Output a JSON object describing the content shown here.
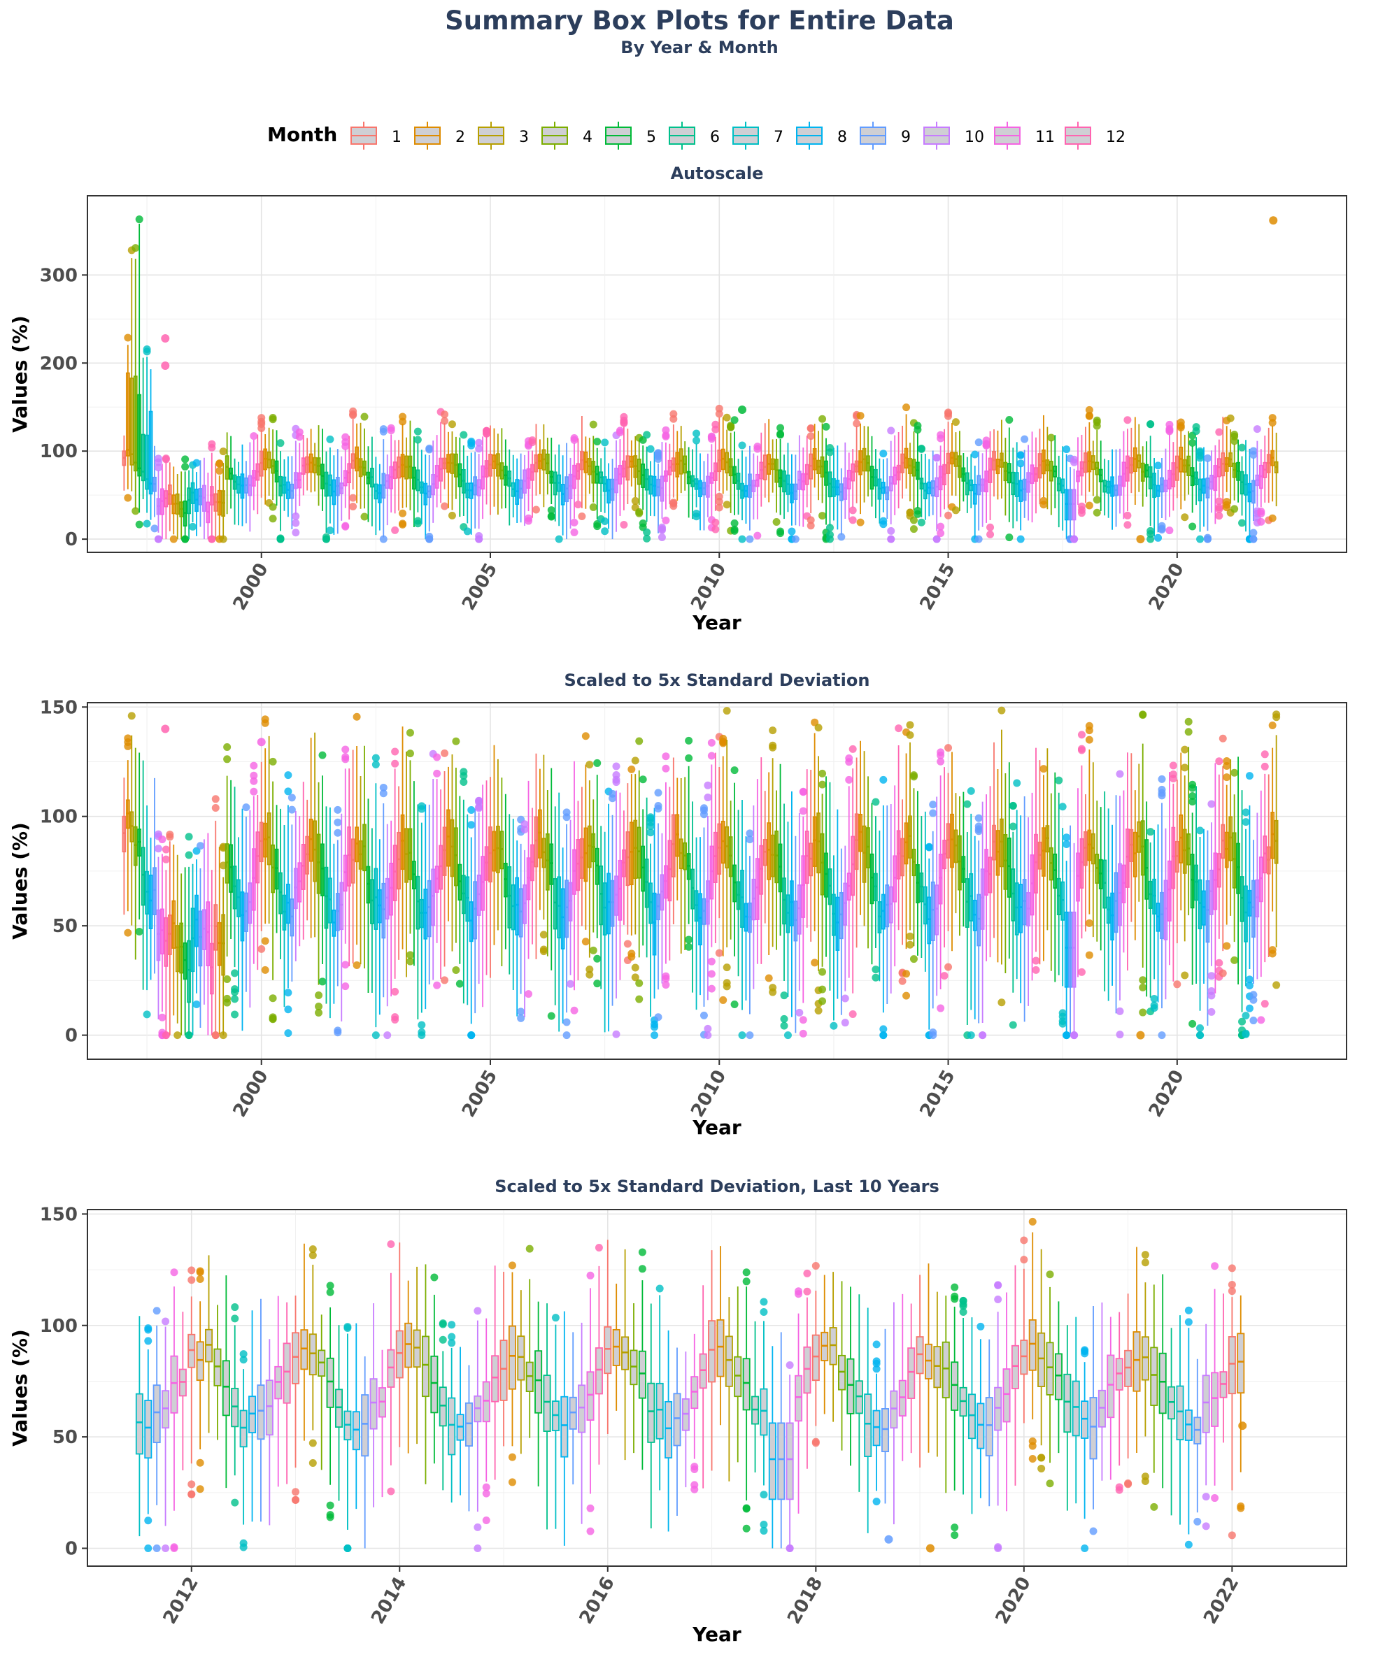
{
  "title": "Summary Box Plots for Entire Data",
  "subtitle": "By Year & Month",
  "legend": {
    "title": "Month",
    "placement": "top",
    "items": [
      {
        "label": "1",
        "color": "#F8766D"
      },
      {
        "label": "2",
        "color": "#DE8C00"
      },
      {
        "label": "3",
        "color": "#B79F00"
      },
      {
        "label": "4",
        "color": "#7CAE00"
      },
      {
        "label": "5",
        "color": "#00BA38"
      },
      {
        "label": "6",
        "color": "#00C08B"
      },
      {
        "label": "7",
        "color": "#00BFC4"
      },
      {
        "label": "8",
        "color": "#00B4F0"
      },
      {
        "label": "9",
        "color": "#619CFF"
      },
      {
        "label": "10",
        "color": "#C77CFF"
      },
      {
        "label": "11",
        "color": "#F564E3"
      },
      {
        "label": "12",
        "color": "#FF64B0"
      }
    ]
  },
  "chart_data": [
    {
      "type": "box",
      "title": "Autoscale",
      "xlabel": "Year",
      "ylabel": "Values (%)",
      "xlim": [
        1996.2,
        2023.7
      ],
      "ylim": [
        -15,
        390
      ],
      "xticks": [
        2000,
        2005,
        2010,
        2015,
        2020
      ],
      "yticks": [
        0,
        100,
        200,
        300
      ],
      "box_fill": "none",
      "grid": true,
      "outliers": [
        {
          "x": 2022.1,
          "y": 362,
          "month": 2
        },
        {
          "x": 1997.9,
          "y": 228,
          "month": 12
        },
        {
          "x": 1997.9,
          "y": 197,
          "month": 12
        },
        {
          "x": 2019.2,
          "y": 0,
          "month": 2
        },
        {
          "x": 2010.5,
          "y": 147,
          "month": 5
        }
      ]
    },
    {
      "type": "box",
      "title": "Scaled to 5x Standard Deviation",
      "xlabel": "Year",
      "ylabel": "Values (%)",
      "xlim": [
        1996.2,
        2023.7
      ],
      "ylim": [
        -11,
        152
      ],
      "xticks": [
        2000,
        2005,
        2010,
        2015,
        2020
      ],
      "yticks": [
        0,
        50,
        100,
        150
      ],
      "box_fill": "none",
      "grid": true,
      "outliers": [
        {
          "x": 1997.9,
          "y": 140,
          "month": 12
        },
        {
          "x": 2000.0,
          "y": 134,
          "month": 11
        },
        {
          "x": 2019.2,
          "y": 0,
          "month": 2
        }
      ]
    },
    {
      "type": "box",
      "title": "Scaled to 5x Standard Deviation, Last 10 Years",
      "xlabel": "Year",
      "ylabel": "Values (%)",
      "xlim": [
        2011.0,
        2023.1
      ],
      "ylim": [
        -8,
        152
      ],
      "xticks": [
        2012,
        2014,
        2016,
        2018,
        2020,
        2022
      ],
      "yticks": [
        0,
        50,
        100,
        150
      ],
      "box_fill": "#cfcfd4",
      "grid": true,
      "outliers": [
        {
          "x": 2019.1,
          "y": 0,
          "month": 2
        },
        {
          "x": 2018.7,
          "y": 4,
          "month": 9
        },
        {
          "x": 2022.1,
          "y": 55,
          "month": 2
        }
      ]
    }
  ]
}
